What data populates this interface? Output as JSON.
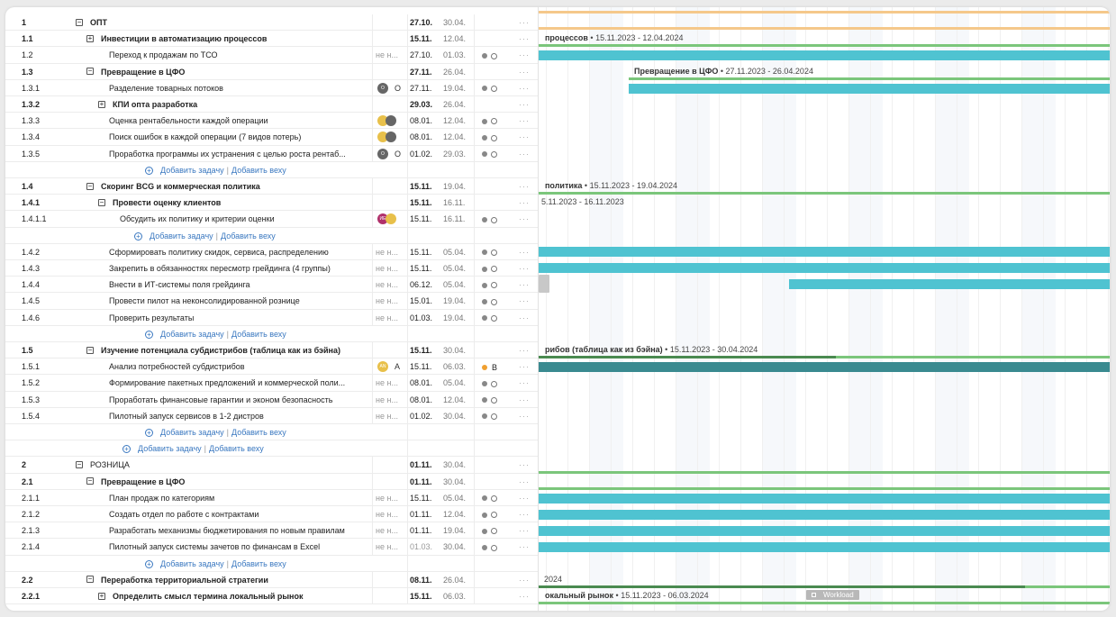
{
  "rows": [
    {
      "kind": "task",
      "num": "1",
      "title": "ОПТ",
      "start": "27.10.",
      "end": "30.04.",
      "bold": true,
      "toggle": "−",
      "indent": 0,
      "topcut": true
    },
    {
      "kind": "task",
      "num": "1.1",
      "title": "Инвестиции в автоматизацию процессов",
      "start": "15.11.",
      "end": "12.04.",
      "bold": true,
      "toggle": "+",
      "indent": 1
    },
    {
      "kind": "task",
      "num": "1.2",
      "title": "Переход к продажам по ТСО",
      "res": "не н...",
      "start": "27.10.",
      "end": "01.03.",
      "indent": 2,
      "status": [
        "dot",
        "circ"
      ]
    },
    {
      "kind": "task",
      "num": "1.3",
      "title": "Превращение в ЦФО",
      "start": "27.11.",
      "end": "26.04.",
      "bold": true,
      "toggle": "−",
      "indent": 1
    },
    {
      "kind": "task",
      "num": "1.3.1",
      "title": "Разделение товарных потоков",
      "start": "27.11.",
      "end": "19.04.",
      "indent": 2,
      "avatars": [
        {
          "c": "#666",
          "t": "О"
        }
      ],
      "avLabel": "О",
      "status": [
        "dot",
        "circ"
      ]
    },
    {
      "kind": "task",
      "num": "1.3.2",
      "title": "КПИ опта разработка",
      "start": "29.03.",
      "end": "26.04.",
      "bold": true,
      "toggle": "+",
      "indent": 3
    },
    {
      "kind": "task",
      "num": "1.3.3",
      "title": "Оценка рентабельности каждой операции",
      "start": "08.01.",
      "end": "12.04.",
      "indent": 2,
      "avatars": [
        {
          "c": "#e8c04a",
          "t": ""
        },
        {
          "c": "#666",
          "t": ""
        }
      ],
      "status": [
        "dot",
        "circ"
      ]
    },
    {
      "kind": "task",
      "num": "1.3.4",
      "title": "Поиск ошибок в каждой операции (7 видов потерь)",
      "start": "08.01.",
      "end": "12.04.",
      "indent": 2,
      "avatars": [
        {
          "c": "#e8c04a",
          "t": ""
        },
        {
          "c": "#666",
          "t": ""
        }
      ],
      "status": [
        "dot",
        "circ"
      ]
    },
    {
      "kind": "task",
      "num": "1.3.5",
      "title": "Проработка программы их устранения с целью роста рентаб...",
      "start": "01.02.",
      "end": "29.03.",
      "indent": 2,
      "avatars": [
        {
          "c": "#666",
          "t": "О"
        }
      ],
      "avLabel": "О",
      "status": [
        "dot",
        "circ"
      ]
    },
    {
      "kind": "add",
      "indent": 2,
      "add_task": "Добавить задачу",
      "add_milestone": "Добавить веху"
    },
    {
      "kind": "task",
      "num": "1.4",
      "title": "Скоринг BCG и коммерческая политика",
      "start": "15.11.",
      "end": "19.04.",
      "bold": true,
      "toggle": "−",
      "indent": 1
    },
    {
      "kind": "task",
      "num": "1.4.1",
      "title": "Провести оценку клиентов",
      "start": "15.11.",
      "end": "16.11.",
      "bold": true,
      "toggle": "−",
      "indent": 3
    },
    {
      "kind": "task",
      "num": "1.4.1.1",
      "title": "Обсудить их политику и критерии оценки",
      "start": "15.11.",
      "end": "16.11.",
      "indent": 4,
      "avatars": [
        {
          "c": "#b0306a",
          "t": "ИЕ"
        },
        {
          "c": "#e8c04a",
          "t": ""
        }
      ],
      "status": [
        "dot",
        "circ"
      ]
    },
    {
      "kind": "add",
      "indent": 3,
      "add_task": "Добавить задачу",
      "add_milestone": "Добавить веху"
    },
    {
      "kind": "task",
      "num": "1.4.2",
      "title": "Сформировать политику скидок, сервиса, распределению",
      "res": "не н...",
      "start": "15.11.",
      "end": "05.04.",
      "indent": 2,
      "status": [
        "dot",
        "circ"
      ]
    },
    {
      "kind": "task",
      "num": "1.4.3",
      "title": "Закрепить в обязанностях пересмотр грейдинга (4 группы)",
      "res": "не н...",
      "start": "15.11.",
      "end": "05.04.",
      "indent": 2,
      "status": [
        "dot",
        "circ"
      ]
    },
    {
      "kind": "task",
      "num": "1.4.4",
      "title": "Внести в ИТ-системы поля грейдинга",
      "res": "не н...",
      "start": "06.12.",
      "end": "05.04.",
      "indent": 2,
      "status": [
        "dot",
        "circ"
      ]
    },
    {
      "kind": "task",
      "num": "1.4.5",
      "title": "Провести пилот на неконсолидированной рознице",
      "res": "не н...",
      "start": "15.01.",
      "end": "19.04.",
      "indent": 2,
      "status": [
        "dot",
        "circ"
      ]
    },
    {
      "kind": "task",
      "num": "1.4.6",
      "title": "Проверить результаты",
      "res": "не н...",
      "start": "01.03.",
      "end": "19.04.",
      "indent": 2,
      "status": [
        "dot",
        "circ"
      ]
    },
    {
      "kind": "add",
      "indent": 2,
      "add_task": "Добавить задачу",
      "add_milestone": "Добавить веху"
    },
    {
      "kind": "task",
      "num": "1.5",
      "title": "Изучение потенциала субдистрибов (таблица как из бэйна)",
      "start": "15.11.",
      "end": "30.04.",
      "bold": true,
      "toggle": "−",
      "indent": 1
    },
    {
      "kind": "task",
      "num": "1.5.1",
      "title": "Анализ потребностей субдистрибов",
      "start": "15.11.",
      "end": "06.03.",
      "indent": 2,
      "avatars": [
        {
          "c": "#e8c04a",
          "t": "AN"
        }
      ],
      "avLabel": "А",
      "status": [
        "dotorange",
        "B"
      ]
    },
    {
      "kind": "task",
      "num": "1.5.2",
      "title": "Формирование пакетных предложений и коммерческой поли...",
      "res": "не н...",
      "start": "08.01.",
      "end": "05.04.",
      "indent": 2,
      "status": [
        "dot",
        "circ"
      ]
    },
    {
      "kind": "task",
      "num": "1.5.3",
      "title": "Проработать финансовые гарантии и эконом безопасность",
      "res": "не н...",
      "start": "08.01.",
      "end": "12.04.",
      "indent": 2,
      "status": [
        "dot",
        "circ"
      ]
    },
    {
      "kind": "task",
      "num": "1.5.4",
      "title": "Пилотный запуск сервисов в 1-2 дистров",
      "res": "не н...",
      "start": "01.02.",
      "end": "30.04.",
      "indent": 2,
      "status": [
        "dot",
        "circ"
      ]
    },
    {
      "kind": "add",
      "indent": 2,
      "add_task": "Добавить задачу",
      "add_milestone": "Добавить веху"
    },
    {
      "kind": "add",
      "indent": 1,
      "add_task": "Добавить задачу",
      "add_milestone": "Добавить веху"
    },
    {
      "kind": "task",
      "num": "2",
      "title": "РОЗНИЦА",
      "start": "01.11.",
      "end": "30.04.",
      "bold": false,
      "toggle": "−",
      "indent": 0
    },
    {
      "kind": "task",
      "num": "2.1",
      "title": "Превращение в ЦФО",
      "start": "01.11.",
      "end": "30.04.",
      "bold": true,
      "toggle": "−",
      "indent": 1
    },
    {
      "kind": "task",
      "num": "2.1.1",
      "title": "План продаж по категориям",
      "res": "не н...",
      "start": "15.11.",
      "end": "05.04.",
      "indent": 2,
      "status": [
        "dot",
        "circ"
      ]
    },
    {
      "kind": "task",
      "num": "2.1.2",
      "title": "Создать отдел по работе с контрактами",
      "res": "не н...",
      "start": "01.11.",
      "end": "12.04.",
      "indent": 2,
      "status": [
        "dot",
        "circ"
      ]
    },
    {
      "kind": "task",
      "num": "2.1.3",
      "title": "Разработать механизмы бюджетирования по новым правилам",
      "res": "не н...",
      "start": "01.11.",
      "end": "19.04.",
      "indent": 2,
      "status": [
        "dot",
        "circ"
      ]
    },
    {
      "kind": "task",
      "num": "2.1.4",
      "title": "Пилотный запуск системы зачетов по финансам в Excel",
      "res": "не н...",
      "start": "01.03.",
      "end": "30.04.",
      "indent": 2,
      "status": [
        "dot",
        "circ"
      ],
      "startGrey": true
    },
    {
      "kind": "add",
      "indent": 2,
      "add_task": "Добавить задачу",
      "add_milestone": "Добавить веху"
    },
    {
      "kind": "task",
      "num": "2.2",
      "title": "Переработка территориальной стратегии",
      "start": "08.11.",
      "end": "26.04.",
      "bold": true,
      "toggle": "−",
      "indent": 1
    },
    {
      "kind": "task",
      "num": "2.2.1",
      "title": "Определить смысл термина локальный рынок",
      "start": "15.11.",
      "end": "06.03.",
      "bold": true,
      "toggle": "+",
      "indent": 3
    }
  ],
  "chart": {
    "labels": [
      {
        "row": 1,
        "name": "процессов",
        "range": "15.11.2023 - 12.04.2024"
      },
      {
        "row": 3,
        "name": "Превращение в ЦФО",
        "range": "27.11.2023 - 26.04.2024"
      },
      {
        "row": 10,
        "name": "политика",
        "range": "15.11.2023 - 19.04.2024"
      },
      {
        "row": 11,
        "name": "",
        "range": "5.11.2023 - 16.11.2023"
      },
      {
        "row": 20,
        "name": "рибов (таблица как из бэйна)",
        "range": "15.11.2023 - 30.04.2024"
      },
      {
        "row": 34,
        "name": "",
        "range": "2024"
      },
      {
        "row": 35,
        "name": "окальный рынок",
        "range": "15.11.2023 - 06.03.2024"
      }
    ],
    "workload_label": "Workload"
  },
  "colors": {
    "accent": "#3a78c0",
    "bar": "#4fc3d1",
    "summary": "#7bc67b",
    "dark": "#3a8a90",
    "orange": "#f5c88a"
  }
}
